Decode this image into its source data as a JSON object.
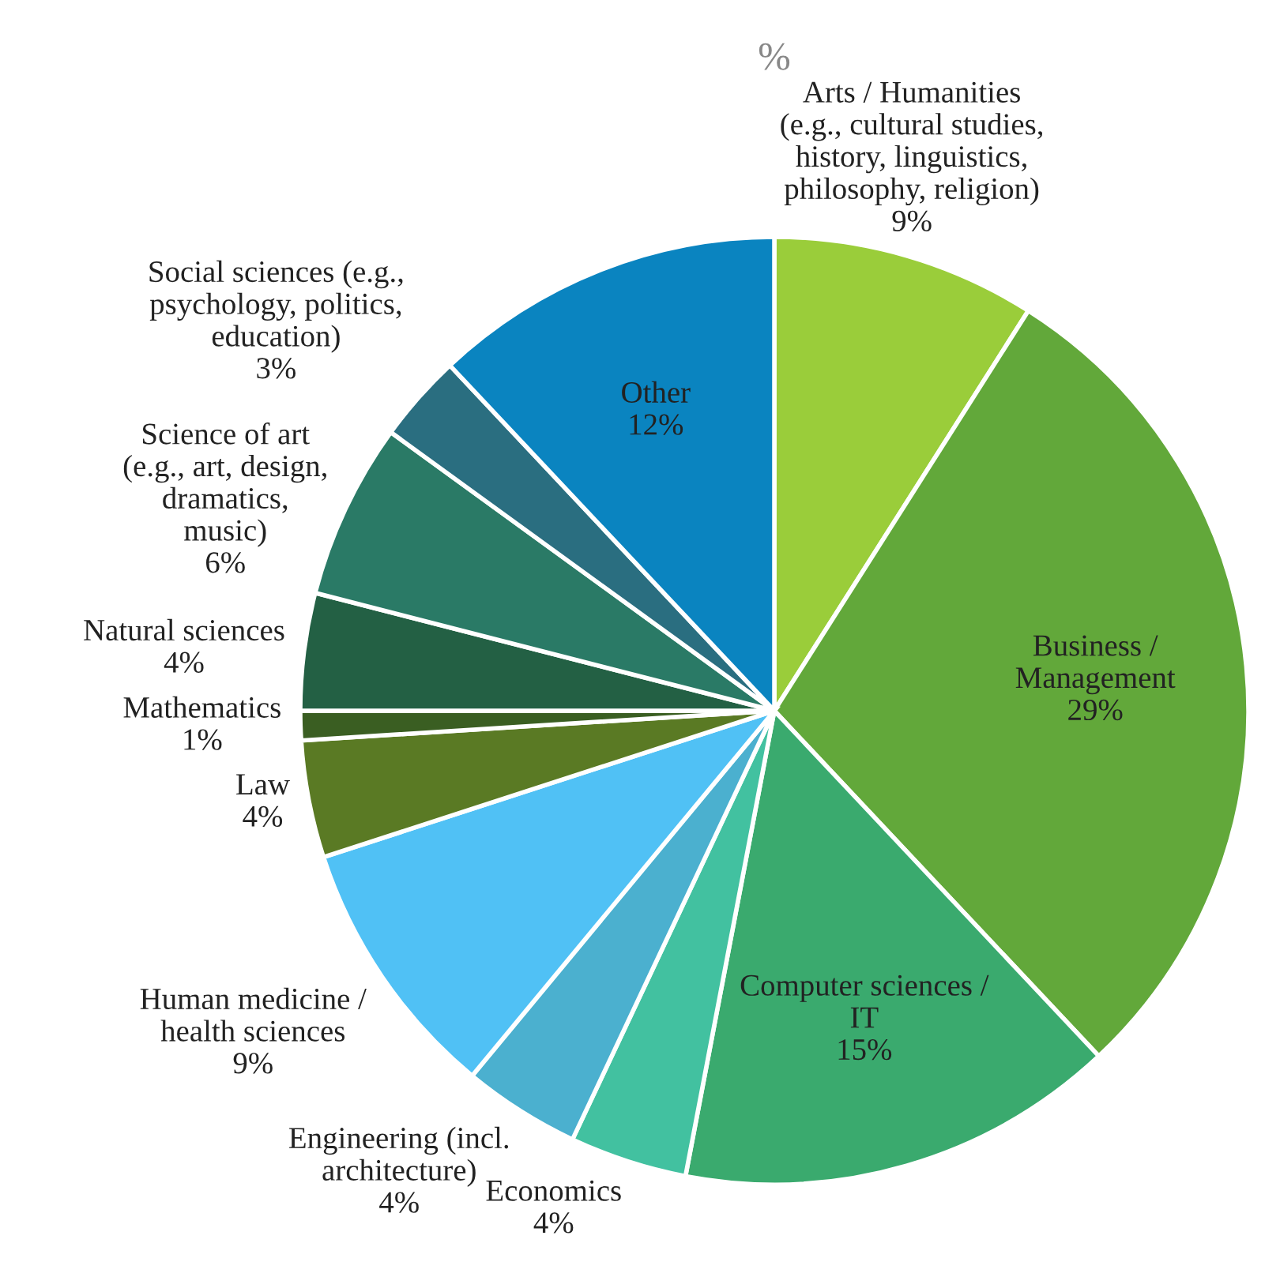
{
  "chart_data": {
    "type": "pie",
    "title": "%",
    "categories": [
      "Arts / Humanities\n(e.g., cultural studies,\nhistory, linguistics,\nphilosophy, religion)",
      "Business /\nManagement",
      "Computer sciences /\nIT",
      "Economics",
      "Engineering (incl.\narchitecture)",
      "Human medicine /\nhealth sciences",
      "Law",
      "Mathematics",
      "Natural sciences",
      "Science of art\n(e.g., art, design,\ndramatics,\nmusic)",
      "Social sciences (e.g.,\npsychology, politics,\neducation)",
      "Other"
    ],
    "values": [
      9,
      29,
      15,
      4,
      4,
      9,
      4,
      1,
      4,
      6,
      3,
      12
    ],
    "value_labels": [
      "9%",
      "29%",
      "15%",
      "4%",
      "4%",
      "9%",
      "4%",
      "1%",
      "4%",
      "6%",
      "3%",
      "12%"
    ],
    "colors": [
      "#9acd3a",
      "#62a83a",
      "#3aaa6e",
      "#42c1a0",
      "#4bb0cf",
      "#50c1f5",
      "#5a7a24",
      "#3a5e22",
      "#236044",
      "#2a7a66",
      "#2a6e80",
      "#0a84c0"
    ]
  }
}
